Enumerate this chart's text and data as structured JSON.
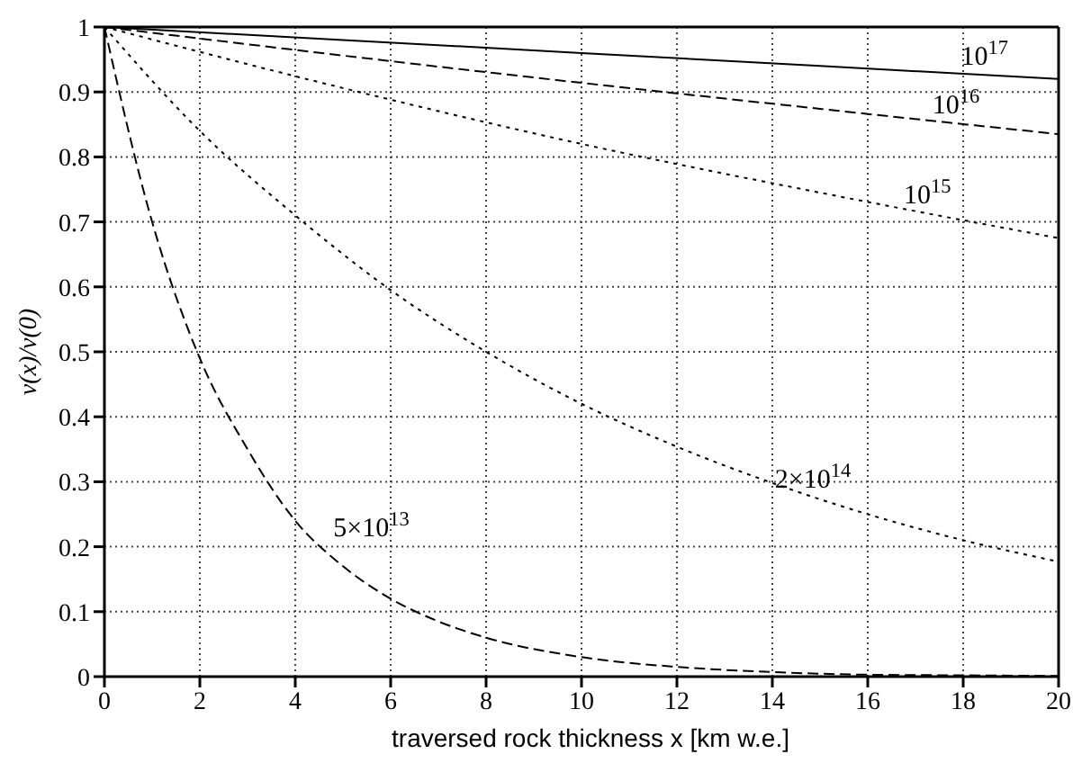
{
  "chart_data": {
    "type": "line",
    "xlabel": "traversed rock thickness x [km w.e.]",
    "ylabel": "v(x)/v(0)",
    "xlim": [
      0,
      20
    ],
    "xticks": [
      0,
      2,
      4,
      6,
      8,
      10,
      12,
      14,
      16,
      18,
      20
    ],
    "ylim": [
      0,
      1
    ],
    "yticks": [
      0,
      0.1,
      0.2,
      0.3,
      0.4,
      0.5,
      0.6,
      0.7,
      0.8,
      0.9,
      1
    ],
    "grid": true,
    "legend": false,
    "marker": "none",
    "series": [
      {
        "name": "10$^{17}$",
        "color": "#000000",
        "line_style": "solid",
        "x": [
          0,
          10,
          20
        ],
        "values": [
          1,
          0.96,
          0.92
        ]
      },
      {
        "name": "10$^{16}$",
        "color": "#000000",
        "line_style": "dashed",
        "x": [
          0,
          5,
          10,
          15,
          20
        ],
        "values": [
          1,
          0.956,
          0.914,
          0.874,
          0.835
        ]
      },
      {
        "name": "10$^{15}$",
        "color": "#000000",
        "line_style": "dotted",
        "x": [
          0,
          5,
          10,
          15,
          20
        ],
        "values": [
          1,
          0.906,
          0.82,
          0.745,
          0.675
        ]
      },
      {
        "name": "2×10$^{14}$",
        "color": "#000000",
        "line_style": "dotted",
        "x": [
          0,
          2,
          4,
          6,
          8,
          10,
          12,
          14,
          16,
          18,
          20
        ],
        "values": [
          1,
          0.84,
          0.71,
          0.595,
          0.5,
          0.42,
          0.354,
          0.298,
          0.25,
          0.21,
          0.177
        ]
      },
      {
        "name": "5×10$^{13}$",
        "color": "#000000",
        "line_style": "dashed",
        "x": [
          0,
          1,
          2,
          3,
          4,
          5,
          6,
          7,
          8,
          10,
          12,
          14,
          16,
          18,
          20
        ],
        "values": [
          1,
          0.7,
          0.49,
          0.35,
          0.24,
          0.17,
          0.12,
          0.085,
          0.06,
          0.03,
          0.015,
          0.007,
          0.003,
          0.002,
          0.001
        ]
      }
    ]
  }
}
